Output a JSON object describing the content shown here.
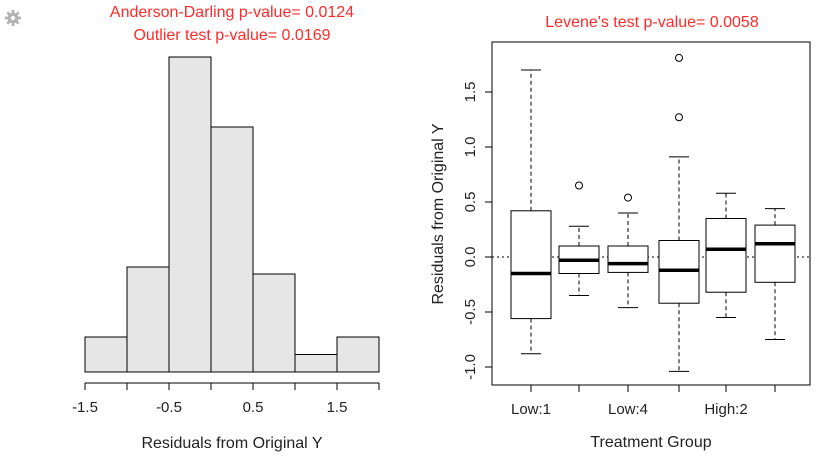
{
  "icons": {
    "settings": "gear-icon"
  },
  "colors": {
    "title": "#ff2a2a",
    "bar_fill": "#e6e6e6",
    "stroke": "#000000"
  },
  "chart_data": [
    {
      "type": "bar",
      "subtype": "histogram",
      "title_lines": [
        "Anderson-Darling p-value= 0.0124",
        "Outlier test p-value= 0.0169"
      ],
      "xlabel": "Residuals from Original Y",
      "ylabel": "",
      "xlim": [
        -1.5,
        2.0
      ],
      "bins": [
        {
          "from": -1.5,
          "to": -1.0,
          "height": 1
        },
        {
          "from": -1.0,
          "to": -0.5,
          "height": 3
        },
        {
          "from": -0.5,
          "to": 0.0,
          "height": 9
        },
        {
          "from": 0.0,
          "to": 0.5,
          "height": 7
        },
        {
          "from": 0.5,
          "to": 1.0,
          "height": 2.8
        },
        {
          "from": 1.0,
          "to": 1.5,
          "height": 0.5
        },
        {
          "from": 1.5,
          "to": 2.0,
          "height": 1
        }
      ],
      "x_ticks": [
        -1.5,
        -1.0,
        -0.5,
        0.0,
        0.5,
        1.0,
        1.5,
        2.0
      ],
      "x_tick_labels": [
        "-1.5",
        "",
        "-0.5",
        "",
        "0.5",
        "",
        "1.5",
        ""
      ]
    },
    {
      "type": "boxplot",
      "title": "Levene's test p-value= 0.0058",
      "xlabel": "Treatment Group",
      "ylabel": "Residuals from Original Y",
      "ylim": [
        -1.05,
        1.85
      ],
      "y_ticks": [
        -1.0,
        -0.5,
        0.0,
        0.5,
        1.0,
        1.5
      ],
      "y_tick_labels": [
        "-1.0",
        "-0.5",
        "0.0",
        "0.5",
        "1.0",
        "1.5"
      ],
      "reference_line": 0.0,
      "x_tick_labels": [
        "Low:1",
        "",
        "Low:4",
        "",
        "High:2",
        ""
      ],
      "groups": [
        {
          "whisker_low": -0.88,
          "q1": -0.56,
          "median": -0.15,
          "q3": 0.42,
          "whisker_high": 1.7,
          "outliers": []
        },
        {
          "whisker_low": -0.35,
          "q1": -0.15,
          "median": -0.03,
          "q3": 0.1,
          "whisker_high": 0.28,
          "outliers": [
            0.65
          ]
        },
        {
          "whisker_low": -0.46,
          "q1": -0.14,
          "median": -0.06,
          "q3": 0.1,
          "whisker_high": 0.4,
          "outliers": [
            0.54
          ]
        },
        {
          "whisker_low": -1.04,
          "q1": -0.42,
          "median": -0.12,
          "q3": 0.15,
          "whisker_high": 0.91,
          "outliers": [
            1.27,
            1.81
          ]
        },
        {
          "whisker_low": -0.55,
          "q1": -0.32,
          "median": 0.07,
          "q3": 0.35,
          "whisker_high": 0.58,
          "outliers": []
        },
        {
          "whisker_low": -0.75,
          "q1": -0.23,
          "median": 0.12,
          "q3": 0.29,
          "whisker_high": 0.44,
          "outliers": []
        }
      ]
    }
  ]
}
